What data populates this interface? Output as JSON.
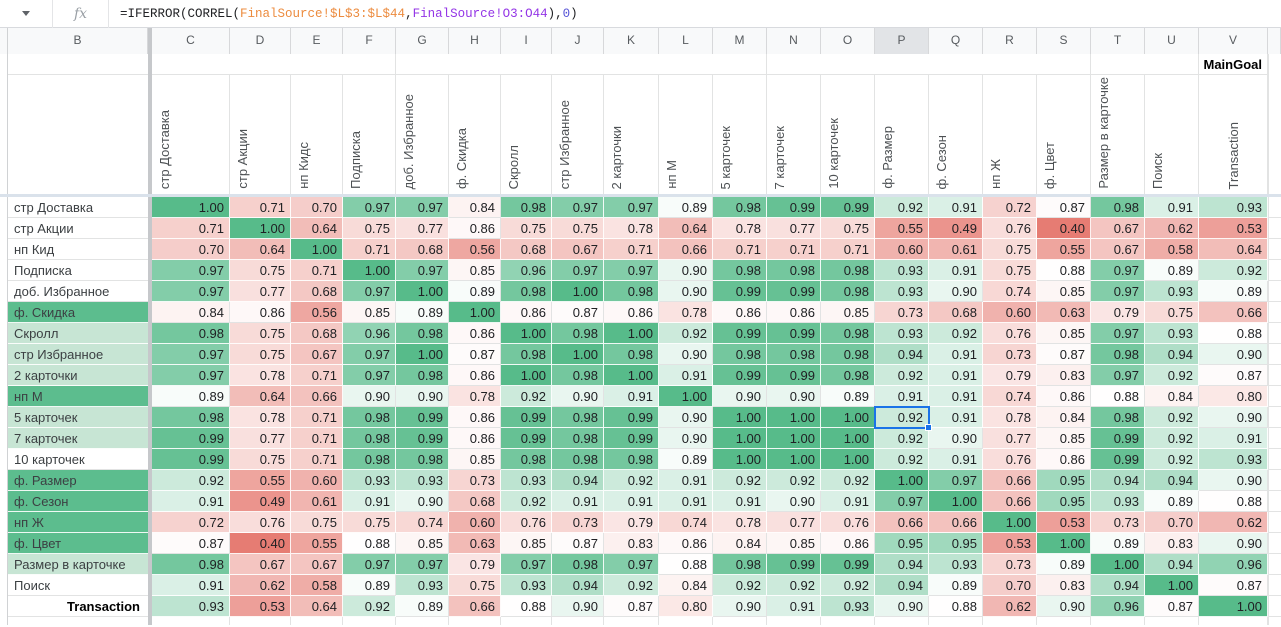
{
  "formula_bar": {
    "fx_label": "fx",
    "dropdown_icon": "chevron-down",
    "formula_parts": [
      {
        "text": "=IFERROR(CORREL(",
        "color": "#202124"
      },
      {
        "text": "FinalSource!$L$3:$L$44",
        "color": "#ec8b3e"
      },
      {
        "text": ",",
        "color": "#202124"
      },
      {
        "text": "FinalSource!O3:O44",
        "color": "#9334e6"
      },
      {
        "text": "),",
        "color": "#202124"
      },
      {
        "text": "0",
        "color": "#5552d6"
      },
      {
        "text": ")",
        "color": "#202124"
      }
    ]
  },
  "grid": {
    "column_letters": [
      "B",
      "C",
      "D",
      "E",
      "F",
      "G",
      "H",
      "I",
      "J",
      "K",
      "L",
      "M",
      "N",
      "O",
      "P",
      "Q",
      "R",
      "S",
      "T",
      "U",
      "V"
    ],
    "selected_column_letter": "P",
    "main_goal_label": "MainGoal",
    "column_headers": [
      "стр Доставка",
      "стр Акции",
      "нп Кидс",
      "Подписка",
      "доб. Избранное",
      "ф. Скидка",
      "Скролл",
      "стр Избранное",
      "2 карточки",
      "нп М",
      "5 карточек",
      "7 карточек",
      "10 карточек",
      "ф. Размер",
      "ф. Сезон",
      "нп Ж",
      "ф. Цвет",
      "Размер в карточке",
      "Поиск",
      "Transaction"
    ],
    "selection": {
      "row_index": 10,
      "col_index": 13,
      "row_label": "5 карточек",
      "column_header": "ф. Размер",
      "value": "0.92"
    },
    "colors": {
      "heat_green_max": "#57bb8a",
      "heat_red_min": "#e67c73",
      "label_green": "#5cbd8e",
      "label_light_green": "#c7e5d4",
      "selection_blue": "#1a73e8"
    },
    "rows": [
      {
        "label": "стр Доставка",
        "label_style": "white",
        "values": [
          1.0,
          0.71,
          0.7,
          0.97,
          0.97,
          0.84,
          0.98,
          0.97,
          0.97,
          0.89,
          0.98,
          0.99,
          0.99,
          0.92,
          0.91,
          0.72,
          0.87,
          0.98,
          0.91,
          0.93
        ]
      },
      {
        "label": "стр Акции",
        "label_style": "white",
        "values": [
          0.71,
          1.0,
          0.64,
          0.75,
          0.77,
          0.86,
          0.75,
          0.75,
          0.78,
          0.64,
          0.78,
          0.77,
          0.75,
          0.55,
          0.49,
          0.76,
          0.4,
          0.67,
          0.62,
          0.53
        ]
      },
      {
        "label": "нп Кид",
        "label_style": "white",
        "values": [
          0.7,
          0.64,
          1.0,
          0.71,
          0.68,
          0.56,
          0.68,
          0.67,
          0.71,
          0.66,
          0.71,
          0.71,
          0.71,
          0.6,
          0.61,
          0.75,
          0.55,
          0.67,
          0.58,
          0.64
        ]
      },
      {
        "label": "Подписка",
        "label_style": "white",
        "values": [
          0.97,
          0.75,
          0.71,
          1.0,
          0.97,
          0.85,
          0.96,
          0.97,
          0.97,
          0.9,
          0.98,
          0.98,
          0.98,
          0.93,
          0.91,
          0.75,
          0.88,
          0.97,
          0.89,
          0.92
        ]
      },
      {
        "label": "доб. Избранное",
        "label_style": "white",
        "values": [
          0.97,
          0.77,
          0.68,
          0.97,
          1.0,
          0.89,
          0.98,
          1.0,
          0.98,
          0.9,
          0.99,
          0.99,
          0.98,
          0.93,
          0.9,
          0.74,
          0.85,
          0.97,
          0.93,
          0.89
        ]
      },
      {
        "label": "ф. Скидка",
        "label_style": "green",
        "values": [
          0.84,
          0.86,
          0.56,
          0.85,
          0.89,
          1.0,
          0.86,
          0.87,
          0.86,
          0.78,
          0.86,
          0.86,
          0.85,
          0.73,
          0.68,
          0.6,
          0.63,
          0.79,
          0.75,
          0.66
        ]
      },
      {
        "label": "Скролл",
        "label_style": "lightgreen",
        "values": [
          0.98,
          0.75,
          0.68,
          0.96,
          0.98,
          0.86,
          1.0,
          0.98,
          1.0,
          0.92,
          0.99,
          0.99,
          0.98,
          0.93,
          0.92,
          0.76,
          0.85,
          0.97,
          0.93,
          0.88
        ]
      },
      {
        "label": "стр Избранное",
        "label_style": "lightgreen",
        "values": [
          0.97,
          0.75,
          0.67,
          0.97,
          1.0,
          0.87,
          0.98,
          1.0,
          0.98,
          0.9,
          0.98,
          0.98,
          0.98,
          0.94,
          0.91,
          0.73,
          0.87,
          0.98,
          0.94,
          0.9
        ]
      },
      {
        "label": "2 карточки",
        "label_style": "lightgreen",
        "values": [
          0.97,
          0.78,
          0.71,
          0.97,
          0.98,
          0.86,
          1.0,
          0.98,
          1.0,
          0.91,
          0.99,
          0.99,
          0.98,
          0.92,
          0.91,
          0.79,
          0.83,
          0.97,
          0.92,
          0.87
        ]
      },
      {
        "label": "нп М",
        "label_style": "green",
        "values": [
          0.89,
          0.64,
          0.66,
          0.9,
          0.9,
          0.78,
          0.92,
          0.9,
          0.91,
          1.0,
          0.9,
          0.9,
          0.89,
          0.91,
          0.91,
          0.74,
          0.86,
          0.88,
          0.84,
          0.8
        ]
      },
      {
        "label": "5 карточек",
        "label_style": "lightgreen",
        "values": [
          0.98,
          0.78,
          0.71,
          0.98,
          0.99,
          0.86,
          0.99,
          0.98,
          0.99,
          0.9,
          1.0,
          1.0,
          1.0,
          0.92,
          0.91,
          0.78,
          0.84,
          0.98,
          0.92,
          0.9
        ]
      },
      {
        "label": "7 карточек",
        "label_style": "lightgreen",
        "values": [
          0.99,
          0.77,
          0.71,
          0.98,
          0.99,
          0.86,
          0.99,
          0.98,
          0.99,
          0.9,
          1.0,
          1.0,
          1.0,
          0.92,
          0.9,
          0.77,
          0.85,
          0.99,
          0.92,
          0.91
        ]
      },
      {
        "label": "10 карточек",
        "label_style": "white",
        "values": [
          0.99,
          0.75,
          0.71,
          0.98,
          0.98,
          0.85,
          0.98,
          0.98,
          0.98,
          0.89,
          1.0,
          1.0,
          1.0,
          0.92,
          0.91,
          0.76,
          0.86,
          0.99,
          0.92,
          0.93
        ]
      },
      {
        "label": "ф. Размер",
        "label_style": "green",
        "values": [
          0.92,
          0.55,
          0.6,
          0.93,
          0.93,
          0.73,
          0.93,
          0.94,
          0.92,
          0.91,
          0.92,
          0.92,
          0.92,
          1.0,
          0.97,
          0.66,
          0.95,
          0.94,
          0.94,
          0.9
        ]
      },
      {
        "label": "ф. Сезон",
        "label_style": "green",
        "values": [
          0.91,
          0.49,
          0.61,
          0.91,
          0.9,
          0.68,
          0.92,
          0.91,
          0.91,
          0.91,
          0.91,
          0.9,
          0.91,
          0.97,
          1.0,
          0.66,
          0.95,
          0.93,
          0.89,
          0.88
        ]
      },
      {
        "label": "нп Ж",
        "label_style": "green",
        "values": [
          0.72,
          0.76,
          0.75,
          0.75,
          0.74,
          0.6,
          0.76,
          0.73,
          0.79,
          0.74,
          0.78,
          0.77,
          0.76,
          0.66,
          0.66,
          1.0,
          0.53,
          0.73,
          0.7,
          0.62
        ]
      },
      {
        "label": "ф. Цвет",
        "label_style": "green",
        "values": [
          0.87,
          0.4,
          0.55,
          0.88,
          0.85,
          0.63,
          0.85,
          0.87,
          0.83,
          0.86,
          0.84,
          0.85,
          0.86,
          0.95,
          0.95,
          0.53,
          1.0,
          0.89,
          0.83,
          0.9
        ]
      },
      {
        "label": "Размер в карточке",
        "label_style": "lightgreen",
        "values": [
          0.98,
          0.67,
          0.67,
          0.97,
          0.97,
          0.79,
          0.97,
          0.98,
          0.97,
          0.88,
          0.98,
          0.99,
          0.99,
          0.94,
          0.93,
          0.73,
          0.89,
          1.0,
          0.94,
          0.96
        ]
      },
      {
        "label": "Поиск",
        "label_style": "white",
        "values": [
          0.91,
          0.62,
          0.58,
          0.89,
          0.93,
          0.75,
          0.93,
          0.94,
          0.92,
          0.84,
          0.92,
          0.92,
          0.92,
          0.94,
          0.89,
          0.7,
          0.83,
          0.94,
          1.0,
          0.87
        ]
      },
      {
        "label": "Transaction",
        "label_style": "total",
        "values": [
          0.93,
          0.53,
          0.64,
          0.92,
          0.89,
          0.66,
          0.88,
          0.9,
          0.87,
          0.8,
          0.9,
          0.91,
          0.93,
          0.9,
          0.88,
          0.62,
          0.9,
          0.96,
          0.87,
          1.0
        ]
      }
    ]
  }
}
